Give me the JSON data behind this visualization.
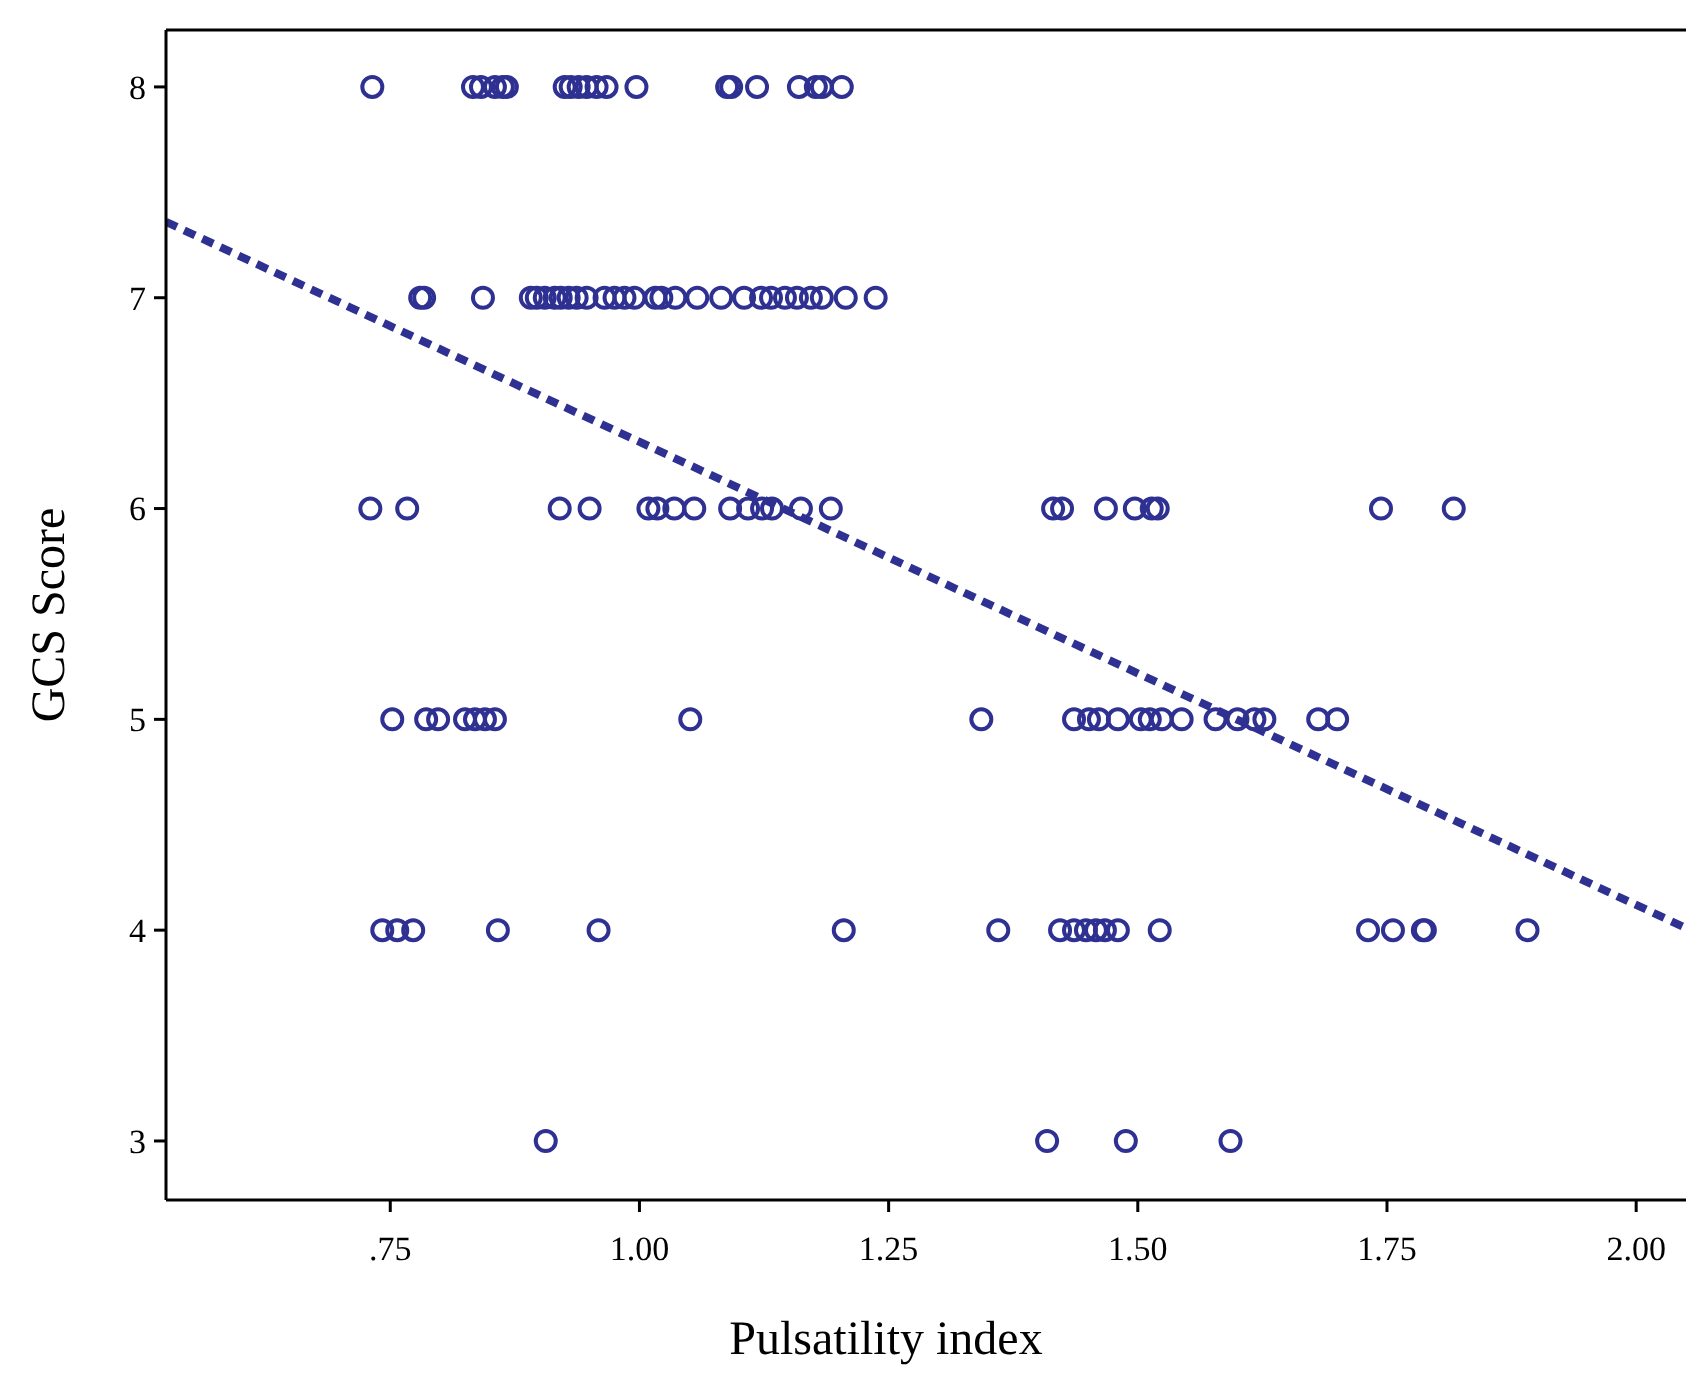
{
  "chart_data": {
    "type": "scatter",
    "xlabel": "Pulsatility index",
    "ylabel": "GCS Score",
    "xlim": [
      0.525,
      2.05
    ],
    "ylim": [
      2.72,
      8.27
    ],
    "xticks": [
      {
        "value": 0.75,
        "label": ".75"
      },
      {
        "value": 1.0,
        "label": "1.00"
      },
      {
        "value": 1.25,
        "label": "1.25"
      },
      {
        "value": 1.5,
        "label": "1.50"
      },
      {
        "value": 1.75,
        "label": "1.75"
      },
      {
        "value": 2.0,
        "label": "2.00"
      }
    ],
    "yticks": [
      3,
      4,
      5,
      6,
      7,
      8
    ],
    "grid": false,
    "series": [
      {
        "color": "#2e3192",
        "marker": "circle",
        "x": [
          0.732,
          0.833,
          0.841,
          0.855,
          0.863,
          0.867,
          0.925,
          0.931,
          0.939,
          0.947,
          0.957,
          0.967,
          0.997,
          1.088,
          1.092,
          1.118,
          1.16,
          1.177,
          1.183,
          1.203,
          0.78,
          0.784,
          0.843,
          0.891,
          0.897,
          0.905,
          0.915,
          0.921,
          0.929,
          0.937,
          0.947,
          0.965,
          0.975,
          0.985,
          0.995,
          1.016,
          1.022,
          1.036,
          1.058,
          1.082,
          1.105,
          1.122,
          1.132,
          1.146,
          1.158,
          1.172,
          1.183,
          1.207,
          1.237,
          0.73,
          0.767,
          0.92,
          0.95,
          1.009,
          1.018,
          1.035,
          1.055,
          1.091,
          1.109,
          1.123,
          1.133,
          1.162,
          1.192,
          1.415,
          1.424,
          1.468,
          1.497,
          1.514,
          1.52,
          1.744,
          1.817,
          0.752,
          0.786,
          0.798,
          0.825,
          0.835,
          0.845,
          0.855,
          1.051,
          1.343,
          1.436,
          1.451,
          1.461,
          1.48,
          1.503,
          1.512,
          1.524,
          1.544,
          1.578,
          1.6,
          1.617,
          1.627,
          1.681,
          1.7,
          0.742,
          0.757,
          0.773,
          0.858,
          0.959,
          1.205,
          1.36,
          1.422,
          1.436,
          1.448,
          1.458,
          1.467,
          1.48,
          1.522,
          1.731,
          1.756,
          1.786,
          1.788,
          1.891,
          0.906,
          1.409,
          1.488,
          1.593
        ],
        "values": [
          8,
          8,
          8,
          8,
          8,
          8,
          8,
          8,
          8,
          8,
          8,
          8,
          8,
          8,
          8,
          8,
          8,
          8,
          8,
          8,
          7,
          7,
          7,
          7,
          7,
          7,
          7,
          7,
          7,
          7,
          7,
          7,
          7,
          7,
          7,
          7,
          7,
          7,
          7,
          7,
          7,
          7,
          7,
          7,
          7,
          7,
          7,
          7,
          7,
          6,
          6,
          6,
          6,
          6,
          6,
          6,
          6,
          6,
          6,
          6,
          6,
          6,
          6,
          6,
          6,
          6,
          6,
          6,
          6,
          6,
          6,
          5,
          5,
          5,
          5,
          5,
          5,
          5,
          5,
          5,
          5,
          5,
          5,
          5,
          5,
          5,
          5,
          5,
          5,
          5,
          5,
          5,
          5,
          5,
          4,
          4,
          4,
          4,
          4,
          4,
          4,
          4,
          4,
          4,
          4,
          4,
          4,
          4,
          4,
          4,
          4,
          4,
          4,
          3,
          3,
          3,
          3
        ]
      },
      {
        "type": "line",
        "color": "#2e3192",
        "marker": "none",
        "line_style": "dashed",
        "x": [
          0.525,
          2.05
        ],
        "values": [
          7.36,
          4.01
        ]
      }
    ]
  }
}
